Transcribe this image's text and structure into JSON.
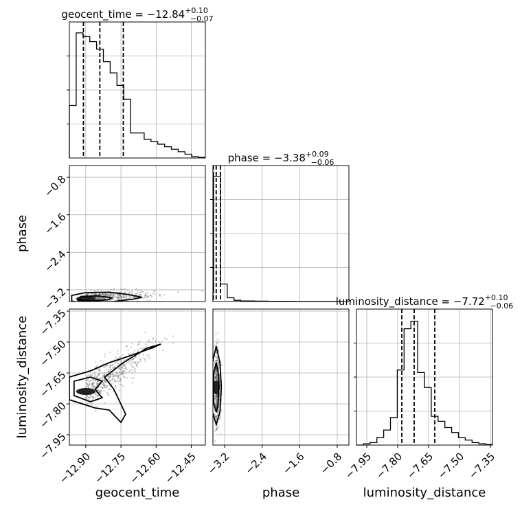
{
  "chart_data": {
    "type": "corner",
    "parameters": [
      {
        "name": "geocent_time",
        "axis_label": "geocent_time",
        "title_prefix": "geocent_time = ",
        "median": "−12.84",
        "upper": "+0.10",
        "lower": "−0.07",
        "range": [
          -12.97,
          -12.39
        ],
        "ticks": [
          -12.9,
          -12.75,
          -12.6,
          -12.45
        ],
        "tick_labels": [
          "−12.90",
          "−12.75",
          "−12.60",
          "−12.45"
        ],
        "quantiles": [
          -12.91,
          -12.84,
          -12.74
        ],
        "hist_edges_start": -12.97,
        "hist_bin_width": 0.029,
        "hist_counts": [
          0.42,
          1.0,
          0.97,
          0.93,
          0.87,
          0.77,
          0.68,
          0.58,
          0.47,
          0.2,
          0.2,
          0.15,
          0.13,
          0.11,
          0.09,
          0.07,
          0.05,
          0.03,
          0.01,
          0.005
        ]
      },
      {
        "name": "phase",
        "axis_label": "phase",
        "title_prefix": "phase = ",
        "median": "−3.38",
        "upper": "+0.09",
        "lower": "−0.06",
        "range": [
          -3.45,
          -0.55
        ],
        "ticks": [
          -3.2,
          -2.4,
          -1.6,
          -0.8
        ],
        "tick_labels": [
          "−3.2",
          "−2.4",
          "−1.6",
          "−0.8"
        ],
        "quantiles": [
          -3.44,
          -3.38,
          -3.29
        ],
        "hist_edges_start": -3.58,
        "hist_bin_width": 0.145,
        "hist_counts": [
          0.07,
          1.0,
          0.14,
          0.03,
          0.01,
          0.005,
          0.005,
          0.003,
          0.003,
          0.002,
          0.002,
          0.002,
          0.002,
          0.001,
          0.001,
          0.001,
          0.001,
          0.001,
          0.001,
          0.001
        ]
      },
      {
        "name": "luminosity_distance",
        "axis_label": "luminosity_distance",
        "title_prefix": "luminosity_distance = ",
        "median": "−7.72",
        "upper": "+0.10",
        "lower": "−0.06",
        "range": [
          -8.0,
          -7.34
        ],
        "ticks": [
          -7.95,
          -7.8,
          -7.65,
          -7.5,
          -7.35
        ],
        "tick_labels": [
          "−7.95",
          "−7.80",
          "−7.65",
          "−7.50",
          "−7.35"
        ],
        "quantiles": [
          -7.78,
          -7.72,
          -7.62
        ],
        "hist_edges_start": -8.0,
        "hist_bin_width": 0.033,
        "hist_counts": [
          0.0,
          0.01,
          0.02,
          0.06,
          0.12,
          0.22,
          0.6,
          0.93,
          0.99,
          0.58,
          0.46,
          0.23,
          0.19,
          0.14,
          0.1,
          0.06,
          0.04,
          0.02,
          0.01,
          0.005
        ]
      }
    ],
    "pairs": [
      {
        "x": "geocent_time",
        "y": "phase",
        "density_center": [
          -12.9,
          -3.4
        ],
        "levels": [
          [
            [
              -12.96,
              -3.44
            ],
            [
              -12.9,
              -3.49
            ],
            [
              -12.8,
              -3.46
            ],
            [
              -12.7,
              -3.4
            ],
            [
              -12.66,
              -3.36
            ],
            [
              -12.72,
              -3.3
            ],
            [
              -12.8,
              -3.25
            ],
            [
              -12.9,
              -3.26
            ],
            [
              -12.96,
              -3.32
            ]
          ],
          [
            [
              -12.93,
              -3.42
            ],
            [
              -12.87,
              -3.44
            ],
            [
              -12.8,
              -3.41
            ],
            [
              -12.79,
              -3.37
            ],
            [
              -12.85,
              -3.33
            ],
            [
              -12.92,
              -3.34
            ]
          ]
        ]
      },
      {
        "x": "geocent_time",
        "y": "luminosity_distance",
        "density_center": [
          -12.9,
          -7.74
        ],
        "levels": [
          [
            [
              -12.97,
              -7.67
            ],
            [
              -12.88,
              -7.64
            ],
            [
              -12.8,
              -7.6
            ],
            [
              -12.72,
              -7.57
            ],
            [
              -12.62,
              -7.53
            ],
            [
              -12.58,
              -7.51
            ],
            [
              -12.64,
              -7.53
            ],
            [
              -12.74,
              -7.6
            ],
            [
              -12.82,
              -7.67
            ],
            [
              -12.78,
              -7.73
            ],
            [
              -12.73,
              -7.85
            ],
            [
              -12.75,
              -7.89
            ],
            [
              -12.8,
              -7.83
            ],
            [
              -12.86,
              -7.82
            ],
            [
              -12.97,
              -7.78
            ]
          ],
          [
            [
              -12.95,
              -7.69
            ],
            [
              -12.88,
              -7.67
            ],
            [
              -12.83,
              -7.69
            ],
            [
              -12.86,
              -7.73
            ],
            [
              -12.83,
              -7.77
            ],
            [
              -12.88,
              -7.79
            ],
            [
              -12.95,
              -7.76
            ]
          ]
        ]
      },
      {
        "x": "phase",
        "y": "luminosity_distance",
        "density_center": [
          -3.38,
          -7.72
        ],
        "levels": [
          [
            [
              -3.38,
              -7.52
            ],
            [
              -3.3,
              -7.6
            ],
            [
              -3.27,
              -7.72
            ],
            [
              -3.3,
              -7.84
            ],
            [
              -3.38,
              -7.9
            ],
            [
              -3.46,
              -7.84
            ],
            [
              -3.48,
              -7.72
            ],
            [
              -3.46,
              -7.6
            ]
          ],
          [
            [
              -3.38,
              -7.6
            ],
            [
              -3.33,
              -7.66
            ],
            [
              -3.32,
              -7.72
            ],
            [
              -3.34,
              -7.8
            ],
            [
              -3.38,
              -7.84
            ],
            [
              -3.43,
              -7.8
            ],
            [
              -3.44,
              -7.72
            ],
            [
              -3.43,
              -7.65
            ]
          ]
        ]
      }
    ]
  }
}
